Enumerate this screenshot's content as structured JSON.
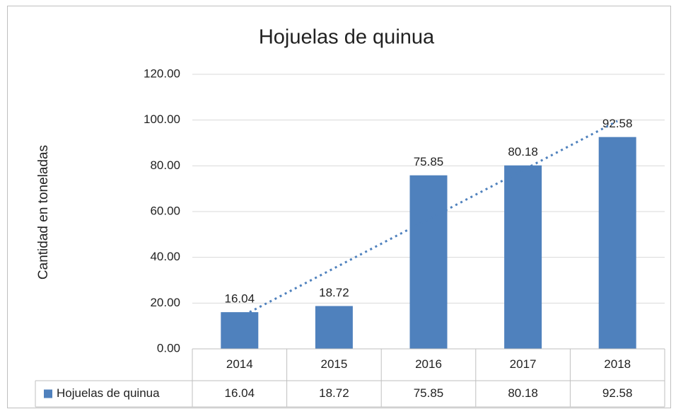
{
  "chart_data": {
    "type": "bar",
    "title": "Hojuelas de quinua",
    "y_label": "Cantidad en toneladas",
    "categories": [
      "2014",
      "2015",
      "2016",
      "2017",
      "2018"
    ],
    "series": [
      {
        "name": "Hojuelas de quinua",
        "color": "#4f81bd",
        "values": [
          16.04,
          18.72,
          75.85,
          80.18,
          92.58
        ]
      }
    ],
    "ylim": [
      0,
      120
    ],
    "yticks": [
      {
        "value": 0,
        "label": "0.00"
      },
      {
        "value": 20,
        "label": "20.00"
      },
      {
        "value": 40,
        "label": "40.00"
      },
      {
        "value": 60,
        "label": "60.00"
      },
      {
        "value": 80,
        "label": "80.00"
      },
      {
        "value": 100,
        "label": "100.00"
      },
      {
        "value": 120,
        "label": "120.00"
      }
    ],
    "grid": true,
    "trendline": "linear",
    "data_table": true
  }
}
